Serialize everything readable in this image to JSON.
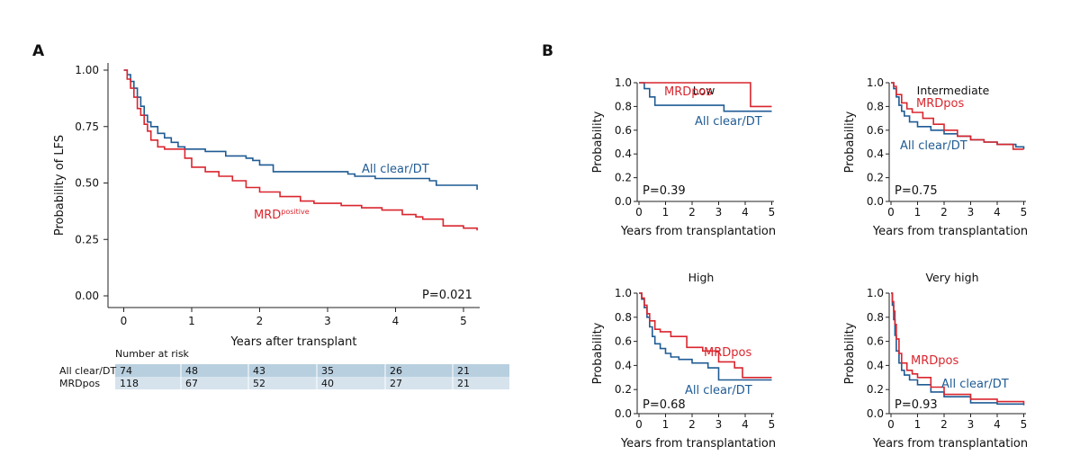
{
  "colors": {
    "all_clear": "#1f5b94",
    "mrd": "#d9262e",
    "risk_row": "#b8cfdf",
    "risk_row_alt": "#d6e3ed"
  },
  "panel_a": {
    "letter": "A",
    "p_value": "P=0.021",
    "label_all_clear": "All clear/DT",
    "label_mrd": "MRD",
    "label_mrd_sup": "positive",
    "risk_table": {
      "title": "Number at risk",
      "rows": [
        {
          "name": "All clear/DT",
          "values": [
            "74",
            "48",
            "43",
            "35",
            "26",
            "21"
          ]
        },
        {
          "name": "MRDpos",
          "values": [
            "118",
            "67",
            "52",
            "40",
            "27",
            "21"
          ]
        }
      ]
    }
  },
  "panel_b": {
    "letter": "B",
    "subtitles": [
      "Low",
      "Intermediate",
      "High",
      "Very high"
    ],
    "p_values": [
      "P=0.39",
      "P=0.75",
      "P=0.68",
      "P=0.93"
    ],
    "label_all_clear": "All clear/DT",
    "label_mrd": "MRDpos"
  },
  "chart_data": [
    {
      "type": "line",
      "title": "",
      "xlabel": "Years after transplant",
      "ylabel": "Probability of LFS",
      "xlim": [
        -0.2,
        5.2
      ],
      "ylim": [
        0,
        1.0
      ],
      "x_ticks": [
        "0",
        "1",
        "2",
        "3",
        "4",
        "5"
      ],
      "y_ticks": [
        "0.00",
        "0.25",
        "0.50",
        "0.75",
        "1.00"
      ],
      "series": [
        {
          "name": "All clear/DT",
          "step": true,
          "x": [
            0,
            0.05,
            0.1,
            0.15,
            0.2,
            0.25,
            0.3,
            0.35,
            0.4,
            0.5,
            0.6,
            0.7,
            0.8,
            0.9,
            1.0,
            1.2,
            1.5,
            1.8,
            1.9,
            2.0,
            2.2,
            2.6,
            3.2,
            3.3,
            3.4,
            3.7,
            4.5,
            4.6,
            5.2
          ],
          "y": [
            1.0,
            0.98,
            0.95,
            0.92,
            0.88,
            0.84,
            0.8,
            0.77,
            0.75,
            0.72,
            0.7,
            0.68,
            0.66,
            0.65,
            0.65,
            0.64,
            0.62,
            0.61,
            0.6,
            0.58,
            0.55,
            0.55,
            0.55,
            0.54,
            0.53,
            0.52,
            0.51,
            0.49,
            0.47
          ]
        },
        {
          "name": "MRDpositive",
          "step": true,
          "x": [
            0,
            0.05,
            0.1,
            0.15,
            0.2,
            0.25,
            0.3,
            0.35,
            0.4,
            0.5,
            0.6,
            0.9,
            1.0,
            1.2,
            1.4,
            1.6,
            1.8,
            2.0,
            2.3,
            2.6,
            2.8,
            3.2,
            3.5,
            3.8,
            4.1,
            4.3,
            4.4,
            4.7,
            5.0,
            5.2
          ],
          "y": [
            1.0,
            0.96,
            0.92,
            0.88,
            0.83,
            0.8,
            0.76,
            0.73,
            0.69,
            0.66,
            0.65,
            0.61,
            0.57,
            0.55,
            0.53,
            0.51,
            0.48,
            0.46,
            0.44,
            0.42,
            0.41,
            0.4,
            0.39,
            0.38,
            0.36,
            0.35,
            0.34,
            0.31,
            0.3,
            0.29
          ]
        }
      ]
    },
    {
      "type": "line",
      "title": "Low",
      "xlabel": "Years from transplantation",
      "ylabel": "Probability",
      "xlim": [
        0,
        5.2
      ],
      "ylim": [
        0,
        1.0
      ],
      "series": [
        {
          "name": "All clear/DT",
          "step": true,
          "x": [
            0,
            0.2,
            0.4,
            0.6,
            3.2,
            5.0
          ],
          "y": [
            1.0,
            0.95,
            0.88,
            0.81,
            0.76,
            0.76
          ]
        },
        {
          "name": "MRDpos",
          "step": true,
          "x": [
            0,
            4.2,
            5.0
          ],
          "y": [
            1.0,
            0.8,
            0.8
          ]
        }
      ]
    },
    {
      "type": "line",
      "title": "Intermediate",
      "xlabel": "Years from transplantation",
      "ylabel": "Probability",
      "xlim": [
        0,
        5.2
      ],
      "ylim": [
        0,
        1.0
      ],
      "series": [
        {
          "name": "All clear/DT",
          "step": true,
          "x": [
            0,
            0.1,
            0.2,
            0.3,
            0.4,
            0.5,
            0.7,
            1.0,
            1.5,
            2.0,
            2.5,
            3.0,
            3.5,
            4.0,
            4.7,
            5.0
          ],
          "y": [
            1.0,
            0.95,
            0.88,
            0.81,
            0.76,
            0.72,
            0.67,
            0.63,
            0.6,
            0.57,
            0.55,
            0.52,
            0.5,
            0.48,
            0.46,
            0.44
          ]
        },
        {
          "name": "MRDpos",
          "step": true,
          "x": [
            0,
            0.1,
            0.2,
            0.4,
            0.6,
            0.8,
            1.2,
            1.6,
            2.0,
            2.5,
            3.0,
            3.5,
            4.0,
            4.6,
            5.0
          ],
          "y": [
            1.0,
            0.97,
            0.9,
            0.83,
            0.78,
            0.75,
            0.7,
            0.65,
            0.6,
            0.55,
            0.52,
            0.5,
            0.48,
            0.44,
            0.44
          ]
        }
      ]
    },
    {
      "type": "line",
      "title": "High",
      "xlabel": "Years from transplantation",
      "ylabel": "Probability",
      "xlim": [
        0,
        5.2
      ],
      "ylim": [
        0,
        1.0
      ],
      "series": [
        {
          "name": "All clear/DT",
          "step": true,
          "x": [
            0,
            0.1,
            0.2,
            0.3,
            0.4,
            0.5,
            0.6,
            0.8,
            1.0,
            1.2,
            1.5,
            2.0,
            2.6,
            3.0,
            3.5,
            5.0
          ],
          "y": [
            1.0,
            0.95,
            0.88,
            0.8,
            0.72,
            0.64,
            0.58,
            0.54,
            0.5,
            0.47,
            0.45,
            0.42,
            0.38,
            0.28,
            0.28,
            0.28
          ]
        },
        {
          "name": "MRDpos",
          "step": true,
          "x": [
            0,
            0.1,
            0.2,
            0.3,
            0.4,
            0.6,
            0.8,
            1.2,
            1.8,
            2.4,
            3.0,
            3.6,
            3.9,
            5.0
          ],
          "y": [
            1.0,
            0.96,
            0.9,
            0.83,
            0.77,
            0.7,
            0.68,
            0.64,
            0.55,
            0.52,
            0.43,
            0.38,
            0.3,
            0.3
          ]
        }
      ]
    },
    {
      "type": "line",
      "title": "Very high",
      "xlabel": "Years from transplantation",
      "ylabel": "Probability",
      "xlim": [
        0,
        5.2
      ],
      "ylim": [
        0,
        1.0
      ],
      "series": [
        {
          "name": "All clear/DT",
          "step": true,
          "x": [
            0,
            0.05,
            0.1,
            0.15,
            0.2,
            0.3,
            0.4,
            0.5,
            0.7,
            1.0,
            1.5,
            2.0,
            3.0,
            4.0,
            5.0
          ],
          "y": [
            1.0,
            0.9,
            0.78,
            0.65,
            0.52,
            0.42,
            0.36,
            0.32,
            0.28,
            0.24,
            0.18,
            0.14,
            0.09,
            0.08,
            0.07
          ]
        },
        {
          "name": "MRDpos",
          "step": true,
          "x": [
            0,
            0.05,
            0.1,
            0.15,
            0.2,
            0.3,
            0.4,
            0.6,
            0.8,
            1.0,
            1.5,
            2.0,
            3.0,
            4.0,
            5.0
          ],
          "y": [
            1.0,
            0.93,
            0.85,
            0.74,
            0.62,
            0.5,
            0.42,
            0.36,
            0.33,
            0.3,
            0.22,
            0.16,
            0.12,
            0.1,
            0.08
          ]
        }
      ]
    }
  ]
}
